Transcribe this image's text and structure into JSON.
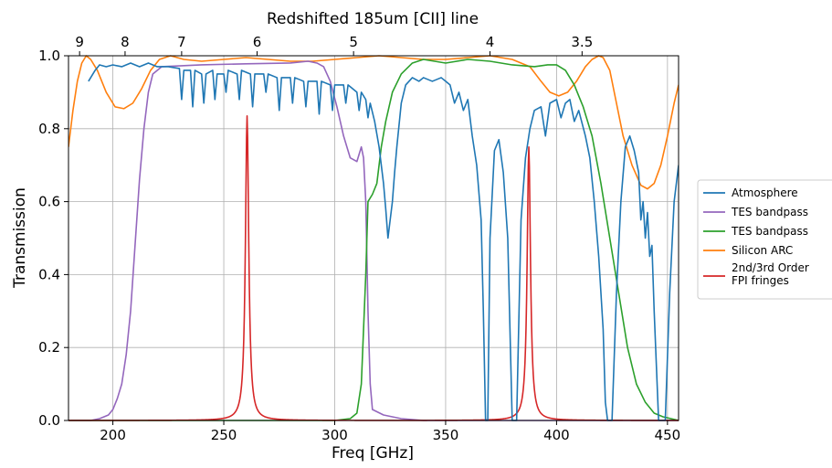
{
  "chart_data": {
    "type": "line",
    "xlabel": "Freq [GHz]",
    "ylabel": "Transmission",
    "top_axis_label": "Redshifted 185um [CII] line",
    "xlim": [
      180,
      455
    ],
    "ylim": [
      0.0,
      1.0
    ],
    "x_ticks": [
      "200",
      "250",
      "300",
      "350",
      "400",
      "450"
    ],
    "y_ticks": [
      "0.0",
      "0.2",
      "0.4",
      "0.6",
      "0.8",
      "1.0"
    ],
    "top_ticks": [
      {
        "label": "9",
        "x": 185.0
      },
      {
        "label": "8",
        "x": 205.5
      },
      {
        "label": "7",
        "x": 231.0
      },
      {
        "label": "6",
        "x": 265.0
      },
      {
        "label": "5",
        "x": 308.5
      },
      {
        "label": "4",
        "x": 370.0
      },
      {
        "label": "3.5",
        "x": 411.5
      }
    ],
    "grid": true,
    "legend_position": "outside-right",
    "series": [
      {
        "name": "Atmosphere",
        "color": "#1f77b4",
        "points": [
          [
            189,
            0.93
          ],
          [
            192,
            0.96
          ],
          [
            194,
            0.975
          ],
          [
            197,
            0.97
          ],
          [
            200,
            0.975
          ],
          [
            204,
            0.97
          ],
          [
            208,
            0.98
          ],
          [
            212,
            0.97
          ],
          [
            216,
            0.98
          ],
          [
            220,
            0.97
          ],
          [
            225,
            0.97
          ],
          [
            230,
            0.965
          ],
          [
            231,
            0.88
          ],
          [
            232,
            0.96
          ],
          [
            235,
            0.96
          ],
          [
            236,
            0.86
          ],
          [
            237,
            0.96
          ],
          [
            240,
            0.95
          ],
          [
            241,
            0.87
          ],
          [
            242,
            0.95
          ],
          [
            245,
            0.96
          ],
          [
            246,
            0.88
          ],
          [
            247,
            0.95
          ],
          [
            250,
            0.95
          ],
          [
            251,
            0.9
          ],
          [
            252,
            0.96
          ],
          [
            256,
            0.95
          ],
          [
            257,
            0.88
          ],
          [
            258,
            0.96
          ],
          [
            262,
            0.95
          ],
          [
            263,
            0.86
          ],
          [
            264,
            0.95
          ],
          [
            268,
            0.95
          ],
          [
            269,
            0.9
          ],
          [
            270,
            0.95
          ],
          [
            274,
            0.94
          ],
          [
            275,
            0.85
          ],
          [
            276,
            0.94
          ],
          [
            280,
            0.94
          ],
          [
            281,
            0.87
          ],
          [
            282,
            0.94
          ],
          [
            286,
            0.93
          ],
          [
            287,
            0.86
          ],
          [
            288,
            0.93
          ],
          [
            292,
            0.93
          ],
          [
            293,
            0.84
          ],
          [
            294,
            0.93
          ],
          [
            298,
            0.92
          ],
          [
            299,
            0.85
          ],
          [
            300,
            0.92
          ],
          [
            304,
            0.92
          ],
          [
            305,
            0.87
          ],
          [
            306,
            0.92
          ],
          [
            310,
            0.9
          ],
          [
            311,
            0.85
          ],
          [
            312,
            0.9
          ],
          [
            314,
            0.88
          ],
          [
            315,
            0.83
          ],
          [
            316,
            0.87
          ],
          [
            318,
            0.82
          ],
          [
            320,
            0.75
          ],
          [
            322,
            0.65
          ],
          [
            323,
            0.58
          ],
          [
            324,
            0.5
          ],
          [
            325,
            0.55
          ],
          [
            326,
            0.6
          ],
          [
            327,
            0.68
          ],
          [
            328,
            0.75
          ],
          [
            330,
            0.87
          ],
          [
            332,
            0.92
          ],
          [
            335,
            0.94
          ],
          [
            338,
            0.93
          ],
          [
            340,
            0.94
          ],
          [
            344,
            0.93
          ],
          [
            348,
            0.94
          ],
          [
            350,
            0.93
          ],
          [
            352,
            0.92
          ],
          [
            354,
            0.87
          ],
          [
            356,
            0.9
          ],
          [
            358,
            0.85
          ],
          [
            360,
            0.88
          ],
          [
            362,
            0.78
          ],
          [
            364,
            0.7
          ],
          [
            366,
            0.55
          ],
          [
            367,
            0.3
          ],
          [
            368,
            0.0
          ],
          [
            369,
            0.0
          ],
          [
            370,
            0.5
          ],
          [
            372,
            0.74
          ],
          [
            374,
            0.77
          ],
          [
            376,
            0.68
          ],
          [
            378,
            0.5
          ],
          [
            379,
            0.25
          ],
          [
            380,
            0.0
          ],
          [
            382,
            0.0
          ],
          [
            384,
            0.55
          ],
          [
            386,
            0.72
          ],
          [
            388,
            0.8
          ],
          [
            390,
            0.85
          ],
          [
            393,
            0.86
          ],
          [
            395,
            0.78
          ],
          [
            397,
            0.87
          ],
          [
            400,
            0.88
          ],
          [
            402,
            0.83
          ],
          [
            404,
            0.87
          ],
          [
            406,
            0.88
          ],
          [
            408,
            0.82
          ],
          [
            410,
            0.85
          ],
          [
            413,
            0.78
          ],
          [
            415,
            0.72
          ],
          [
            417,
            0.6
          ],
          [
            419,
            0.45
          ],
          [
            421,
            0.25
          ],
          [
            422,
            0.05
          ],
          [
            423,
            0.0
          ],
          [
            425,
            0.0
          ],
          [
            427,
            0.35
          ],
          [
            429,
            0.6
          ],
          [
            431,
            0.75
          ],
          [
            433,
            0.78
          ],
          [
            435,
            0.74
          ],
          [
            437,
            0.68
          ],
          [
            438,
            0.55
          ],
          [
            439,
            0.6
          ],
          [
            440,
            0.5
          ],
          [
            441,
            0.57
          ],
          [
            442,
            0.45
          ],
          [
            443,
            0.48
          ],
          [
            444,
            0.3
          ],
          [
            445,
            0.15
          ],
          [
            446,
            0.0
          ],
          [
            449,
            0.0
          ],
          [
            451,
            0.35
          ],
          [
            453,
            0.6
          ],
          [
            455,
            0.7
          ]
        ]
      },
      {
        "name": "TES bandpass",
        "color": "#9467bd",
        "points": [
          [
            180,
            0.0
          ],
          [
            190,
            0.0
          ],
          [
            194,
            0.005
          ],
          [
            198,
            0.015
          ],
          [
            200,
            0.03
          ],
          [
            202,
            0.06
          ],
          [
            204,
            0.1
          ],
          [
            206,
            0.18
          ],
          [
            208,
            0.3
          ],
          [
            210,
            0.48
          ],
          [
            212,
            0.66
          ],
          [
            214,
            0.8
          ],
          [
            216,
            0.9
          ],
          [
            218,
            0.95
          ],
          [
            222,
            0.97
          ],
          [
            240,
            0.975
          ],
          [
            260,
            0.978
          ],
          [
            280,
            0.98
          ],
          [
            288,
            0.985
          ],
          [
            292,
            0.98
          ],
          [
            295,
            0.97
          ],
          [
            298,
            0.93
          ],
          [
            301,
            0.86
          ],
          [
            304,
            0.78
          ],
          [
            307,
            0.72
          ],
          [
            310,
            0.71
          ],
          [
            312,
            0.75
          ],
          [
            313,
            0.72
          ],
          [
            314,
            0.6
          ],
          [
            315,
            0.3
          ],
          [
            316,
            0.1
          ],
          [
            317,
            0.03
          ],
          [
            322,
            0.015
          ],
          [
            330,
            0.005
          ],
          [
            340,
            0.0
          ],
          [
            455,
            0.0
          ]
        ]
      },
      {
        "name": "TES bandpass",
        "color": "#2ca02c",
        "points": [
          [
            180,
            0.0
          ],
          [
            300,
            0.0
          ],
          [
            307,
            0.005
          ],
          [
            310,
            0.02
          ],
          [
            312,
            0.1
          ],
          [
            314,
            0.4
          ],
          [
            315,
            0.6
          ],
          [
            317,
            0.62
          ],
          [
            319,
            0.65
          ],
          [
            321,
            0.75
          ],
          [
            323,
            0.82
          ],
          [
            326,
            0.9
          ],
          [
            330,
            0.95
          ],
          [
            335,
            0.98
          ],
          [
            340,
            0.99
          ],
          [
            345,
            0.985
          ],
          [
            350,
            0.98
          ],
          [
            360,
            0.99
          ],
          [
            370,
            0.985
          ],
          [
            380,
            0.975
          ],
          [
            390,
            0.97
          ],
          [
            396,
            0.975
          ],
          [
            400,
            0.975
          ],
          [
            404,
            0.96
          ],
          [
            408,
            0.92
          ],
          [
            412,
            0.86
          ],
          [
            416,
            0.78
          ],
          [
            420,
            0.65
          ],
          [
            424,
            0.5
          ],
          [
            428,
            0.35
          ],
          [
            432,
            0.2
          ],
          [
            436,
            0.1
          ],
          [
            440,
            0.05
          ],
          [
            444,
            0.02
          ],
          [
            448,
            0.01
          ],
          [
            455,
            0.0
          ]
        ]
      },
      {
        "name": "Silicon ARC",
        "color": "#ff7f0e",
        "points": [
          [
            180,
            0.75
          ],
          [
            182,
            0.85
          ],
          [
            184,
            0.93
          ],
          [
            186,
            0.98
          ],
          [
            188,
            1.0
          ],
          [
            190,
            0.99
          ],
          [
            193,
            0.96
          ],
          [
            197,
            0.9
          ],
          [
            201,
            0.86
          ],
          [
            205,
            0.855
          ],
          [
            209,
            0.87
          ],
          [
            213,
            0.91
          ],
          [
            217,
            0.96
          ],
          [
            221,
            0.99
          ],
          [
            226,
            1.0
          ],
          [
            232,
            0.99
          ],
          [
            240,
            0.985
          ],
          [
            250,
            0.99
          ],
          [
            260,
            0.995
          ],
          [
            270,
            0.99
          ],
          [
            280,
            0.985
          ],
          [
            290,
            0.985
          ],
          [
            300,
            0.99
          ],
          [
            310,
            0.995
          ],
          [
            320,
            1.0
          ],
          [
            330,
            0.995
          ],
          [
            340,
            0.99
          ],
          [
            350,
            0.99
          ],
          [
            360,
            0.995
          ],
          [
            370,
            1.0
          ],
          [
            380,
            0.99
          ],
          [
            388,
            0.97
          ],
          [
            393,
            0.93
          ],
          [
            397,
            0.9
          ],
          [
            401,
            0.89
          ],
          [
            405,
            0.9
          ],
          [
            409,
            0.93
          ],
          [
            413,
            0.97
          ],
          [
            416,
            0.99
          ],
          [
            419,
            1.0
          ],
          [
            421,
            0.995
          ],
          [
            424,
            0.96
          ],
          [
            427,
            0.87
          ],
          [
            430,
            0.78
          ],
          [
            434,
            0.7
          ],
          [
            438,
            0.645
          ],
          [
            441,
            0.635
          ],
          [
            444,
            0.65
          ],
          [
            447,
            0.7
          ],
          [
            450,
            0.78
          ],
          [
            453,
            0.87
          ],
          [
            455,
            0.92
          ]
        ]
      },
      {
        "name": "2nd/3rd Order FPI fringes",
        "color": "#d62728",
        "peaks": [
          {
            "center": 260.5,
            "height": 0.835,
            "hwhm": 0.9
          },
          {
            "center": 387.5,
            "height": 0.75,
            "hwhm": 0.9
          }
        ]
      }
    ]
  }
}
